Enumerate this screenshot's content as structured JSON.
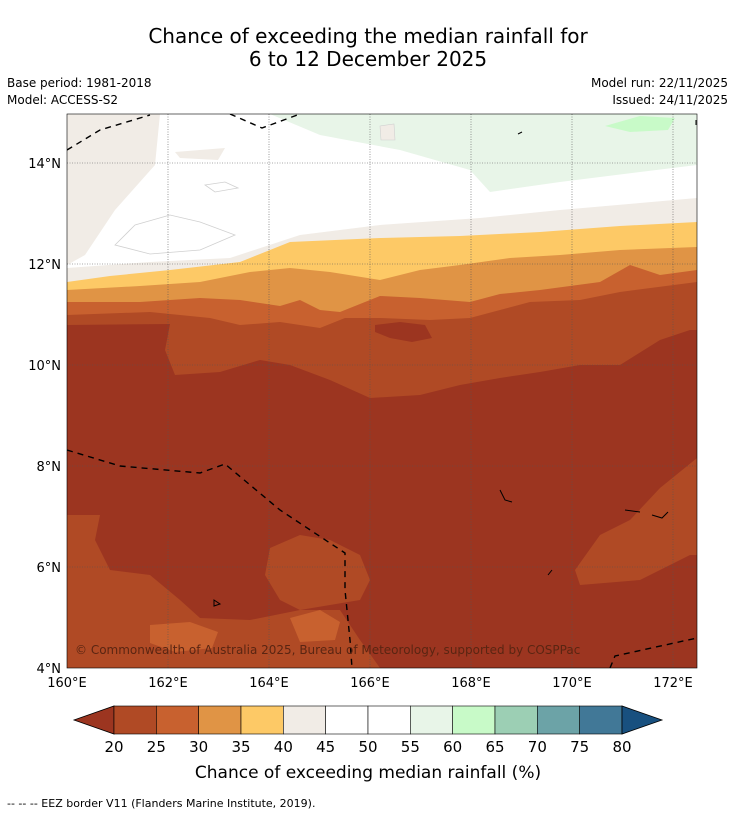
{
  "title": {
    "line1": "Chance of exceeding the median rainfall for",
    "line2": "6 to 12 December 2025"
  },
  "meta": {
    "base_period": "Base period: 1981-2018",
    "model": "Model: ACCESS-S2",
    "model_run": "Model run: 22/11/2025",
    "issued": "Issued: 24/11/2025"
  },
  "map": {
    "lon_ticks": [
      "160°E",
      "162°E",
      "164°E",
      "166°E",
      "168°E",
      "170°E",
      "172°E"
    ],
    "lat_ticks": [
      "14°N",
      "12°N",
      "10°N",
      "8°N",
      "6°N",
      "4°N"
    ],
    "copyright": "© Commonwealth of Australia 2025, Bureau of Meteorology, supported by COSPPac"
  },
  "colorbar": {
    "ticks": [
      "20",
      "25",
      "30",
      "35",
      "40",
      "45",
      "50",
      "55",
      "60",
      "65",
      "70",
      "75",
      "80"
    ],
    "colors": [
      "#9c3520",
      "#b04a25",
      "#c8612f",
      "#e09445",
      "#fdc966",
      "#f1ece6",
      "#ffffff",
      "#ffffff",
      "#e8f5e8",
      "#c8fac8",
      "#9ccfb4",
      "#6ca3a7",
      "#417897",
      "#18507f"
    ],
    "label": "Chance of exceeding median rainfall (%)"
  },
  "footnote": "--  --  -- EEZ border V11 (Flanders Marine Institute, 2019)."
}
